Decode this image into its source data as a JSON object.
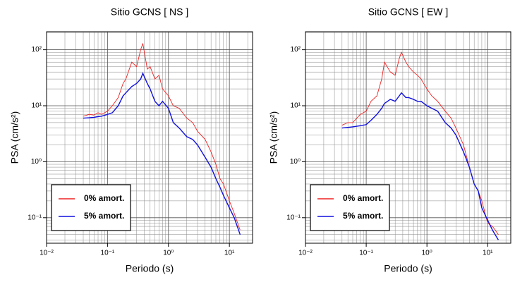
{
  "chart_data": [
    {
      "type": "line",
      "title": "Sitio GCNS [ NS ]",
      "xlabel": "Periodo (s)",
      "ylabel": "PSA (cm/s²)",
      "log": true,
      "grid": true,
      "legend": "lower left",
      "xlim": [
        0.01,
        24
      ],
      "ylim": [
        0.035,
        210
      ],
      "xticks": [
        {
          "value": 0.01,
          "label": "10⁻²"
        },
        {
          "value": 0.1,
          "label": "10⁻¹"
        },
        {
          "value": 1,
          "label": "10⁰"
        },
        {
          "value": 10,
          "label": "10¹"
        }
      ],
      "yticks": [
        {
          "value": 0.1,
          "label": "10⁻¹"
        },
        {
          "value": 1,
          "label": "10⁰"
        },
        {
          "value": 10,
          "label": "10¹"
        },
        {
          "value": 100,
          "label": "10²"
        }
      ],
      "xminor": [
        0.02,
        0.03,
        0.04,
        0.05,
        0.06,
        0.07,
        0.08,
        0.09,
        0.2,
        0.3,
        0.4,
        0.5,
        0.6,
        0.7,
        0.8,
        0.9,
        2,
        3,
        4,
        5,
        6,
        7,
        8,
        9,
        20
      ],
      "yminor": [
        0.04,
        0.05,
        0.06,
        0.07,
        0.08,
        0.09,
        0.2,
        0.3,
        0.4,
        0.5,
        0.6,
        0.7,
        0.8,
        0.9,
        2,
        3,
        4,
        5,
        6,
        7,
        8,
        9,
        20,
        30,
        40,
        50,
        60,
        70,
        80,
        90,
        200
      ],
      "x": [
        0.04,
        0.05,
        0.06,
        0.07,
        0.08,
        0.1,
        0.12,
        0.15,
        0.18,
        0.2,
        0.25,
        0.3,
        0.35,
        0.38,
        0.45,
        0.5,
        0.6,
        0.7,
        0.8,
        1,
        1.2,
        1.5,
        2,
        2.5,
        3,
        4,
        5,
        6,
        7,
        8,
        10,
        12,
        15
      ],
      "series": [
        {
          "name": "0% amort.",
          "color": "#ee2222",
          "values": [
            6.5,
            7,
            6.8,
            7.5,
            7,
            8,
            10,
            14,
            25,
            30,
            60,
            50,
            100,
            130,
            45,
            50,
            30,
            35,
            20,
            15,
            10,
            9,
            6,
            5,
            3.5,
            2.5,
            1.5,
            0.9,
            0.5,
            0.4,
            0.2,
            0.12,
            0.06
          ]
        },
        {
          "name": "5% amort.",
          "color": "#1111dd",
          "values": [
            6,
            6.1,
            6.2,
            6.4,
            6.5,
            7,
            7.5,
            10,
            15,
            17,
            22,
            25,
            30,
            38,
            25,
            20,
            12,
            10,
            12,
            9,
            5,
            4,
            2.8,
            2.5,
            2,
            1.2,
            0.8,
            0.5,
            0.35,
            0.25,
            0.15,
            0.1,
            0.05
          ]
        }
      ]
    },
    {
      "type": "line",
      "title": "Sitio GCNS [ EW ]",
      "xlabel": "Periodo (s)",
      "ylabel": "PSA (cm/s²)",
      "log": true,
      "grid": true,
      "legend": "lower left",
      "xlim": [
        0.01,
        24
      ],
      "ylim": [
        0.035,
        210
      ],
      "xticks": [
        {
          "value": 0.01,
          "label": "10⁻²"
        },
        {
          "value": 0.1,
          "label": "10⁻¹"
        },
        {
          "value": 1,
          "label": "10⁰"
        },
        {
          "value": 10,
          "label": "10¹"
        }
      ],
      "yticks": [
        {
          "value": 0.1,
          "label": "10⁻¹"
        },
        {
          "value": 1,
          "label": "10⁰"
        },
        {
          "value": 10,
          "label": "10¹"
        },
        {
          "value": 100,
          "label": "10²"
        }
      ],
      "xminor": [
        0.02,
        0.03,
        0.04,
        0.05,
        0.06,
        0.07,
        0.08,
        0.09,
        0.2,
        0.3,
        0.4,
        0.5,
        0.6,
        0.7,
        0.8,
        0.9,
        2,
        3,
        4,
        5,
        6,
        7,
        8,
        9,
        20
      ],
      "yminor": [
        0.04,
        0.05,
        0.06,
        0.07,
        0.08,
        0.09,
        0.2,
        0.3,
        0.4,
        0.5,
        0.6,
        0.7,
        0.8,
        0.9,
        2,
        3,
        4,
        5,
        6,
        7,
        8,
        9,
        20,
        30,
        40,
        50,
        60,
        70,
        80,
        90,
        200
      ],
      "x": [
        0.04,
        0.05,
        0.06,
        0.07,
        0.08,
        0.1,
        0.12,
        0.15,
        0.18,
        0.2,
        0.25,
        0.3,
        0.35,
        0.38,
        0.45,
        0.5,
        0.6,
        0.7,
        0.8,
        1,
        1.2,
        1.5,
        2,
        2.5,
        3,
        4,
        5,
        6,
        7,
        8,
        10,
        12,
        15
      ],
      "series": [
        {
          "name": "0% amort.",
          "color": "#ee2222",
          "values": [
            4.5,
            5,
            5,
            6,
            7,
            8,
            12,
            15,
            30,
            60,
            40,
            35,
            70,
            90,
            60,
            50,
            40,
            35,
            30,
            20,
            15,
            12,
            8,
            6,
            4,
            2,
            0.8,
            0.4,
            0.3,
            0.2,
            0.08,
            0.07,
            0.05
          ]
        },
        {
          "name": "5% amort.",
          "color": "#1111dd",
          "values": [
            4,
            4.1,
            4.2,
            4.3,
            4.4,
            4.6,
            5.5,
            7,
            9,
            11,
            13,
            12,
            15,
            17,
            14,
            14,
            13,
            12,
            12,
            10,
            9,
            8,
            5,
            4,
            3,
            1.5,
            0.8,
            0.4,
            0.3,
            0.15,
            0.09,
            0.06,
            0.04
          ]
        }
      ]
    }
  ]
}
